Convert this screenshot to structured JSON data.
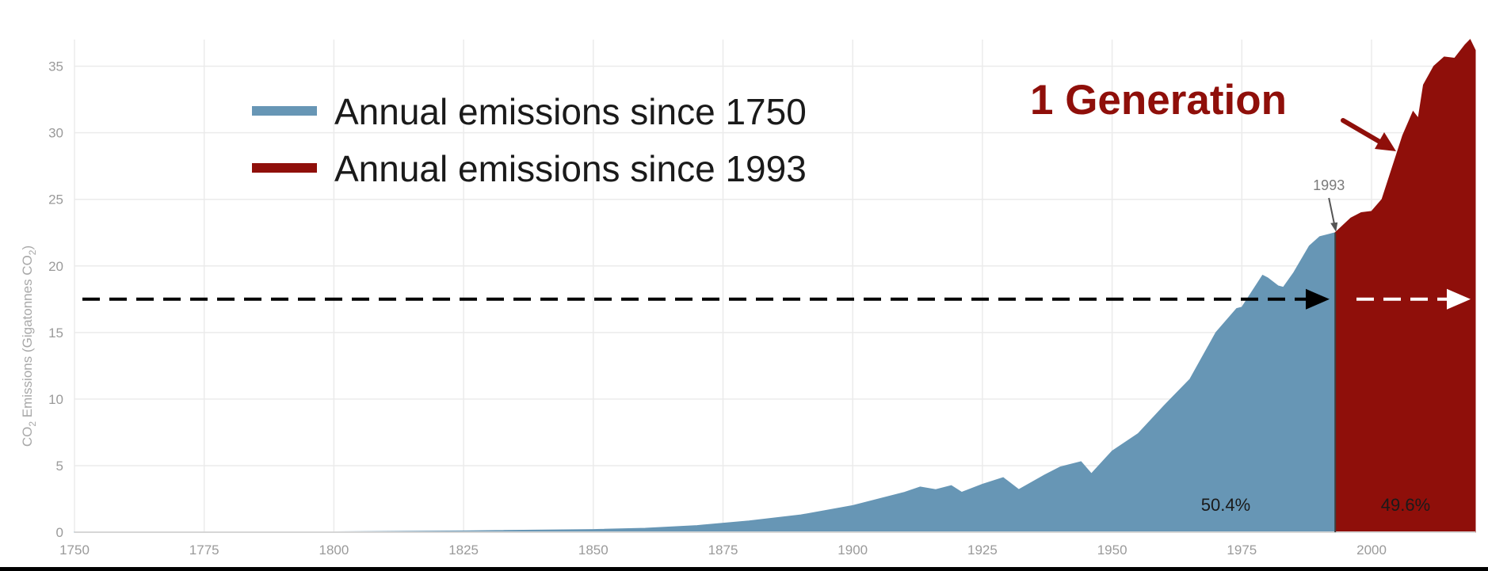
{
  "chart_data": {
    "type": "area",
    "title": "",
    "ylabel": "CO₂ Emissions (Gigatonnes CO₂)",
    "ylabel_parts": [
      "CO",
      "2",
      " Emissions (Gigatonnes CO",
      "2",
      ")"
    ],
    "xlabel": "",
    "xlim": [
      1750,
      2020
    ],
    "ylim": [
      0,
      37
    ],
    "x_ticks": [
      "1750",
      "1775",
      "1800",
      "1825",
      "1850",
      "1875",
      "1900",
      "1925",
      "1950",
      "1975",
      "2000"
    ],
    "y_ticks": [
      "0",
      "5",
      "10",
      "15",
      "20",
      "25",
      "30",
      "35"
    ],
    "grid": true,
    "legend_position": "top-left",
    "split_year": 1993,
    "split_label": "1993",
    "dashed_reference_value": 17.5,
    "annotation": "1 Generation",
    "colors": {
      "before": "#6796b5",
      "after": "#8f0f0a",
      "grid": "#ebebeb",
      "dashed_left": "#000000",
      "dashed_right": "#ffffff"
    },
    "series": [
      {
        "name": "Annual emissions since 1750",
        "color": "#6796b5",
        "share_label": "50.4%",
        "x": [
          1750,
          1775,
          1800,
          1825,
          1850,
          1860,
          1870,
          1880,
          1890,
          1900,
          1905,
          1910,
          1913,
          1916,
          1919,
          1921,
          1925,
          1929,
          1932,
          1937,
          1940,
          1944,
          1946,
          1950,
          1955,
          1960,
          1965,
          1970,
          1974,
          1975,
          1979,
          1980,
          1982,
          1983,
          1985,
          1988,
          1990,
          1992,
          1993
        ],
        "values": [
          0.01,
          0.02,
          0.03,
          0.1,
          0.2,
          0.3,
          0.5,
          0.85,
          1.3,
          2.0,
          2.5,
          3.0,
          3.4,
          3.2,
          3.5,
          3.0,
          3.6,
          4.1,
          3.2,
          4.3,
          4.9,
          5.3,
          4.4,
          6.1,
          7.4,
          9.5,
          11.5,
          15.0,
          16.8,
          16.9,
          19.3,
          19.1,
          18.5,
          18.4,
          19.5,
          21.5,
          22.2,
          22.4,
          22.5
        ]
      },
      {
        "name": "Annual emissions since 1993",
        "color": "#8f0f0a",
        "share_label": "49.6%",
        "x": [
          1993,
          1996,
          1998,
          2000,
          2002,
          2004,
          2006,
          2008,
          2009,
          2010,
          2012,
          2014,
          2016,
          2018,
          2019,
          2020
        ],
        "values": [
          22.5,
          23.6,
          24.0,
          24.1,
          25.0,
          27.4,
          29.8,
          31.6,
          31.1,
          33.6,
          35.0,
          35.7,
          35.6,
          36.6,
          37.0,
          36.2
        ]
      }
    ]
  }
}
